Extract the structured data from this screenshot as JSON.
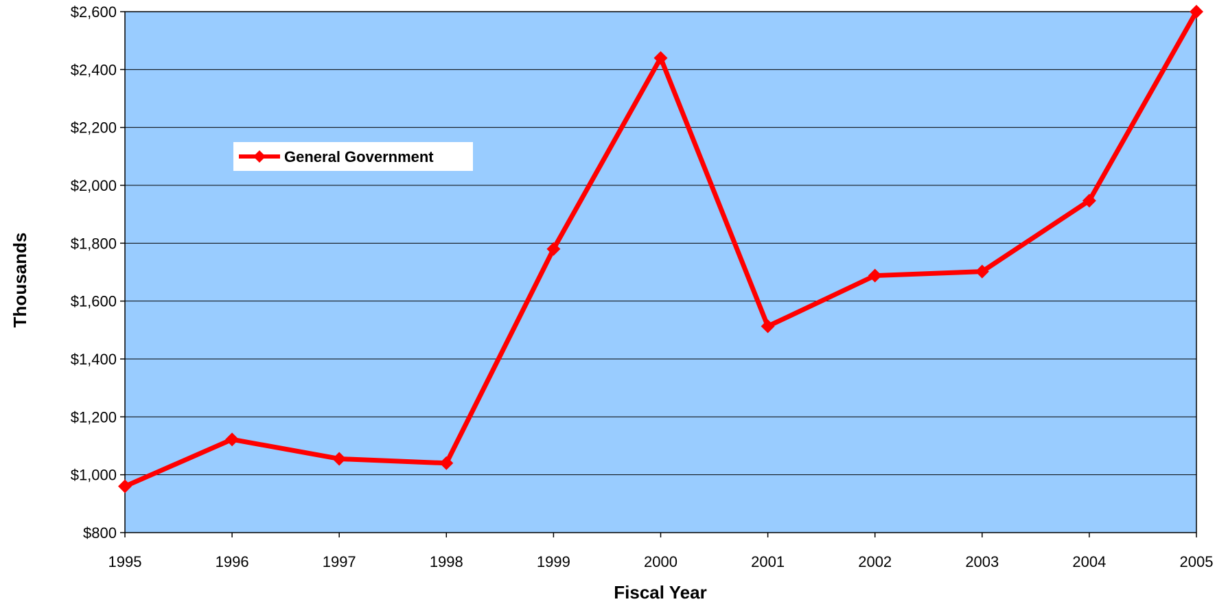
{
  "chart_data": {
    "type": "line",
    "xlabel": "Fiscal Year",
    "ylabel": "Thousands",
    "x": [
      "1995",
      "1996",
      "1997",
      "1998",
      "1999",
      "2000",
      "2001",
      "2002",
      "2003",
      "2004",
      "2005"
    ],
    "series": [
      {
        "name": "General Government",
        "values": [
          960,
          1122,
          1055,
          1040,
          1780,
          2440,
          1513,
          1688,
          1702,
          1947,
          2600
        ],
        "color": "#ff0000"
      }
    ],
    "ylim": [
      800,
      2600
    ],
    "yticks": [
      800,
      1000,
      1200,
      1400,
      1600,
      1800,
      2000,
      2200,
      2400,
      2600
    ],
    "ytick_labels": [
      "$800",
      "$1,000",
      "$1,200",
      "$1,400",
      "$1,600",
      "$1,800",
      "$2,000",
      "$2,200",
      "$2,400",
      "$2,600"
    ],
    "grid": true,
    "legend": "upper-left inside plot",
    "plot_background": "#99ccff"
  }
}
